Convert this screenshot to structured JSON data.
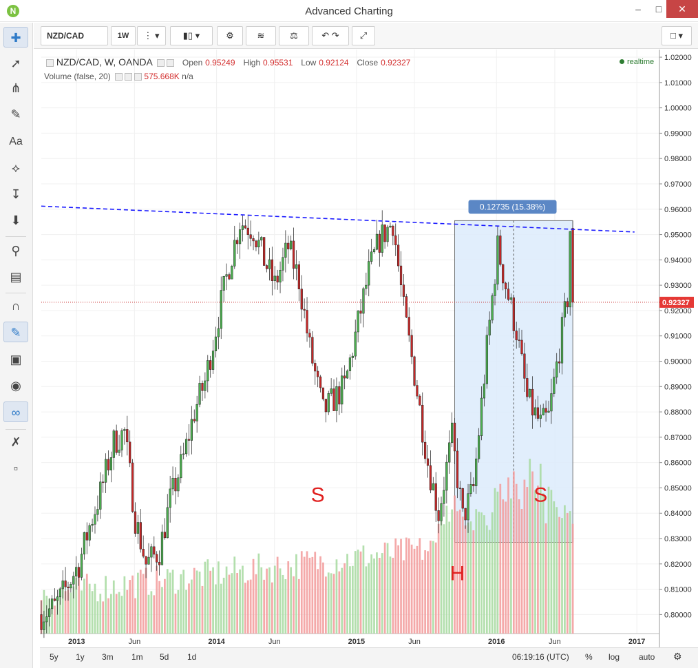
{
  "window": {
    "title": "Advanced Charting",
    "logo": "N"
  },
  "toolbar": {
    "symbol": "NZD/CAD",
    "interval": "1W"
  },
  "legend": {
    "title": "NZD/CAD, W, OANDA",
    "open_label": "Open",
    "open": "0.95249",
    "high_label": "High",
    "high": "0.95531",
    "low_label": "Low",
    "low": "0.92124",
    "close_label": "Close",
    "close": "0.92327",
    "volume_title": "Volume (false, 20)",
    "volume_value": "575.668K",
    "volume_extra": "n/a",
    "realtime": "realtime"
  },
  "bottom": {
    "ranges": [
      "5y",
      "1y",
      "3m",
      "1m",
      "5d",
      "1d"
    ],
    "time": "06:19:16 (UTC)",
    "percent": "%",
    "log": "log",
    "auto": "auto"
  },
  "chart_data": {
    "type": "candlestick",
    "y_ticks": [
      "1.02000",
      "1.01000",
      "1.00000",
      "0.99000",
      "0.98000",
      "0.97000",
      "0.96000",
      "0.95000",
      "0.94000",
      "0.93000",
      "0.92000",
      "0.91000",
      "0.90000",
      "0.89000",
      "0.88000",
      "0.87000",
      "0.86000",
      "0.85000",
      "0.84000",
      "0.83000",
      "0.82000",
      "0.81000",
      "0.80000"
    ],
    "x_ticks": [
      "2013",
      "Jun",
      "2014",
      "Jun",
      "2015",
      "Jun",
      "2016",
      "Jun",
      "2017"
    ],
    "last_price": "0.92327",
    "measure_label": "0.12735 (15.38%)",
    "annotations": [
      "S",
      "H",
      "S"
    ],
    "anchors": [
      {
        "date": "2012-10-01",
        "price": 0.8
      },
      {
        "date": "2012-11-05",
        "price": 0.803
      },
      {
        "date": "2012-12-03",
        "price": 0.81
      },
      {
        "date": "2013-01-07",
        "price": 0.82
      },
      {
        "date": "2013-02-04",
        "price": 0.835
      },
      {
        "date": "2013-03-04",
        "price": 0.848
      },
      {
        "date": "2013-04-08",
        "price": 0.868
      },
      {
        "date": "2013-05-06",
        "price": 0.872
      },
      {
        "date": "2013-06-03",
        "price": 0.838
      },
      {
        "date": "2013-07-01",
        "price": 0.82
      },
      {
        "date": "2013-08-05",
        "price": 0.825
      },
      {
        "date": "2013-09-02",
        "price": 0.845
      },
      {
        "date": "2013-10-07",
        "price": 0.862
      },
      {
        "date": "2013-11-04",
        "price": 0.88
      },
      {
        "date": "2013-12-02",
        "price": 0.892
      },
      {
        "date": "2014-01-06",
        "price": 0.918
      },
      {
        "date": "2014-02-03",
        "price": 0.938
      },
      {
        "date": "2014-03-03",
        "price": 0.955
      },
      {
        "date": "2014-04-07",
        "price": 0.952
      },
      {
        "date": "2014-05-05",
        "price": 0.94
      },
      {
        "date": "2014-06-02",
        "price": 0.93
      },
      {
        "date": "2014-07-07",
        "price": 0.945
      },
      {
        "date": "2014-08-04",
        "price": 0.932
      },
      {
        "date": "2014-09-01",
        "price": 0.905
      },
      {
        "date": "2014-10-06",
        "price": 0.88
      },
      {
        "date": "2014-11-03",
        "price": 0.885
      },
      {
        "date": "2014-12-01",
        "price": 0.89
      },
      {
        "date": "2015-01-05",
        "price": 0.915
      },
      {
        "date": "2015-02-02",
        "price": 0.935
      },
      {
        "date": "2015-03-02",
        "price": 0.948
      },
      {
        "date": "2015-04-06",
        "price": 0.955
      },
      {
        "date": "2015-05-04",
        "price": 0.92
      },
      {
        "date": "2015-06-01",
        "price": 0.895
      },
      {
        "date": "2015-07-06",
        "price": 0.86
      },
      {
        "date": "2015-08-03",
        "price": 0.84
      },
      {
        "date": "2015-09-07",
        "price": 0.87
      },
      {
        "date": "2015-10-05",
        "price": 0.838
      },
      {
        "date": "2015-11-02",
        "price": 0.85
      },
      {
        "date": "2015-12-07",
        "price": 0.905
      },
      {
        "date": "2016-01-04",
        "price": 0.945
      },
      {
        "date": "2016-01-25",
        "price": 0.93
      },
      {
        "date": "2016-02-22",
        "price": 0.912
      },
      {
        "date": "2016-03-21",
        "price": 0.885
      },
      {
        "date": "2016-04-25",
        "price": 0.875
      },
      {
        "date": "2016-05-16",
        "price": 0.878
      },
      {
        "date": "2016-06-13",
        "price": 0.905
      },
      {
        "date": "2016-07-04",
        "price": 0.925
      },
      {
        "date": "2016-07-11",
        "price": 0.952
      },
      {
        "date": "2016-07-18",
        "price": 0.923
      }
    ]
  }
}
